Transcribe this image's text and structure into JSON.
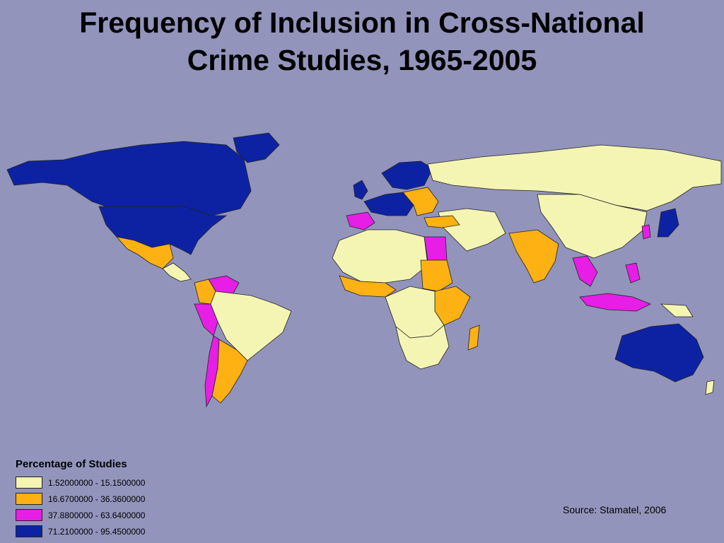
{
  "title": {
    "line1": "Frequency of Inclusion in Cross-National",
    "line2": "Crime Studies, 1965-2005"
  },
  "legend": {
    "title": "Percentage of Studies",
    "items": [
      {
        "label": "1.52000000 - 15.1500000",
        "color": "#f5f5b3"
      },
      {
        "label": "16.6700000 - 36.3600000",
        "color": "#fdb113"
      },
      {
        "label": "37.8800000 - 63.6400000",
        "color": "#e61ee6"
      },
      {
        "label": "71.2100000 - 95.4500000",
        "color": "#0d22a3"
      }
    ]
  },
  "source": "Source:  Stamatel, 2006",
  "colors": {
    "background": "#9294bb",
    "country_border": "#222222"
  }
}
